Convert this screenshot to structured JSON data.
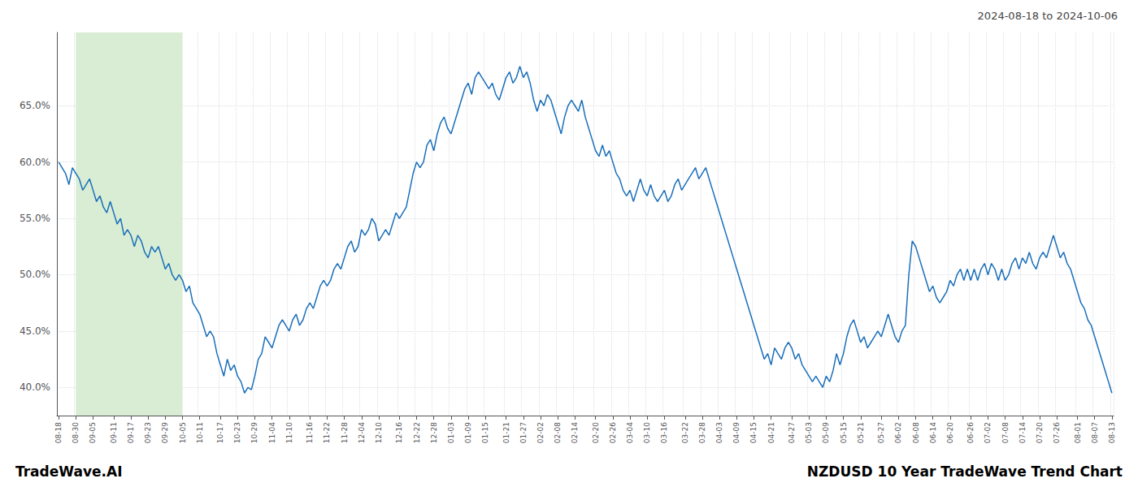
{
  "chart_data": {
    "type": "line",
    "title": "NZDUSD 10 Year TradeWave Trend Chart",
    "subtitle": "2024-08-18 to 2024-10-06",
    "annotations": [
      "TradeWave.AI"
    ],
    "color": "#1a6fba",
    "grid": true,
    "ylim": [
      37.5,
      71.5
    ],
    "yticks": [
      {
        "value": 40.0,
        "label": "40.0%"
      },
      {
        "value": 45.0,
        "label": "45.0%"
      },
      {
        "value": 50.0,
        "label": "50.0%"
      },
      {
        "value": 55.0,
        "label": "55.0%"
      },
      {
        "value": 60.0,
        "label": "60.0%"
      },
      {
        "value": 65.0,
        "label": "65.0%"
      }
    ],
    "shaded": {
      "start": "08-30",
      "end": "10-05",
      "color": "#d8edd4"
    },
    "categories": [
      "08-18",
      null,
      null,
      null,
      null,
      "08-30",
      null,
      null,
      null,
      null,
      "09-05",
      null,
      null,
      null,
      null,
      null,
      "09-11",
      null,
      null,
      null,
      null,
      "09-17",
      null,
      null,
      null,
      null,
      "09-23",
      null,
      null,
      null,
      null,
      "09-29",
      null,
      null,
      null,
      null,
      "10-05",
      null,
      null,
      null,
      null,
      "10-11",
      null,
      null,
      null,
      null,
      null,
      "10-17",
      null,
      null,
      null,
      null,
      "10-23",
      null,
      null,
      null,
      null,
      "10-29",
      null,
      null,
      null,
      null,
      "11-04",
      null,
      null,
      null,
      null,
      "11-10",
      null,
      null,
      null,
      null,
      null,
      "11-16",
      null,
      null,
      null,
      null,
      "11-22",
      null,
      null,
      null,
      null,
      "11-28",
      null,
      null,
      null,
      null,
      "12-04",
      null,
      null,
      null,
      null,
      "12-10",
      null,
      null,
      null,
      null,
      null,
      "12-16",
      null,
      null,
      null,
      null,
      "12-22",
      null,
      null,
      null,
      null,
      "12-28",
      null,
      null,
      null,
      null,
      "01-03",
      null,
      null,
      null,
      null,
      "01-09",
      null,
      null,
      null,
      null,
      "01-15",
      null,
      null,
      null,
      null,
      null,
      "01-21",
      null,
      null,
      null,
      null,
      "01-27",
      null,
      null,
      null,
      null,
      "02-02",
      null,
      null,
      null,
      null,
      "02-08",
      null,
      null,
      null,
      null,
      "02-14",
      null,
      null,
      null,
      null,
      null,
      "02-20",
      null,
      null,
      null,
      null,
      "02-26",
      null,
      null,
      null,
      null,
      "03-04",
      null,
      null,
      null,
      null,
      "03-10",
      null,
      null,
      null,
      null,
      "03-16",
      null,
      null,
      null,
      null,
      null,
      "03-22",
      null,
      null,
      null,
      null,
      "03-28",
      null,
      null,
      null,
      null,
      "04-03",
      null,
      null,
      null,
      null,
      "04-09",
      null,
      null,
      null,
      null,
      "04-15",
      null,
      null,
      null,
      null,
      "04-21",
      null,
      null,
      null,
      null,
      null,
      "04-27",
      null,
      null,
      null,
      null,
      "05-03",
      null,
      null,
      null,
      null,
      "05-09",
      null,
      null,
      null,
      null,
      "05-15",
      null,
      null,
      null,
      null,
      "05-21",
      null,
      null,
      null,
      null,
      null,
      "05-27",
      null,
      null,
      null,
      null,
      "06-02",
      null,
      null,
      null,
      null,
      "06-08",
      null,
      null,
      null,
      null,
      "06-14",
      null,
      null,
      null,
      null,
      "06-20",
      null,
      null,
      null,
      null,
      null,
      "06-26",
      null,
      null,
      null,
      null,
      "07-02",
      null,
      null,
      null,
      null,
      "07-08",
      null,
      null,
      null,
      null,
      "07-14",
      null,
      null,
      null,
      null,
      "07-20",
      null,
      null,
      null,
      null,
      "07-26",
      null,
      null,
      null,
      null,
      null,
      "08-01",
      null,
      null,
      null,
      null,
      "08-07",
      null,
      null,
      null,
      null,
      "08-13"
    ],
    "values": [
      60.0,
      59.5,
      59.0,
      58.0,
      59.5,
      59.0,
      58.5,
      57.5,
      58.0,
      58.5,
      57.5,
      56.5,
      57.0,
      56.0,
      55.5,
      56.5,
      55.5,
      54.5,
      55.0,
      53.5,
      54.0,
      53.5,
      52.5,
      53.5,
      53.0,
      52.0,
      51.5,
      52.5,
      52.0,
      52.5,
      51.5,
      50.5,
      51.0,
      50.0,
      49.5,
      50.0,
      49.5,
      48.5,
      49.0,
      47.5,
      47.0,
      46.5,
      45.5,
      44.5,
      45.0,
      44.5,
      43.0,
      42.0,
      41.0,
      42.5,
      41.5,
      42.0,
      41.0,
      40.5,
      39.5,
      40.0,
      39.8,
      41.0,
      42.5,
      43.0,
      44.5,
      44.0,
      43.5,
      44.5,
      45.5,
      46.0,
      45.5,
      45.0,
      46.0,
      46.5,
      45.5,
      46.0,
      47.0,
      47.5,
      47.0,
      48.0,
      49.0,
      49.5,
      49.0,
      49.5,
      50.5,
      51.0,
      50.5,
      51.5,
      52.5,
      53.0,
      52.0,
      52.5,
      54.0,
      53.5,
      54.0,
      55.0,
      54.5,
      53.0,
      53.5,
      54.0,
      53.5,
      54.5,
      55.5,
      55.0,
      55.5,
      56.0,
      57.5,
      59.0,
      60.0,
      59.5,
      60.0,
      61.5,
      62.0,
      61.0,
      62.5,
      63.5,
      64.0,
      63.0,
      62.5,
      63.5,
      64.5,
      65.5,
      66.5,
      67.0,
      66.0,
      67.5,
      68.0,
      67.5,
      67.0,
      66.5,
      67.0,
      66.0,
      65.5,
      66.5,
      67.5,
      68.0,
      67.0,
      67.5,
      68.5,
      67.5,
      68.0,
      67.0,
      65.5,
      64.5,
      65.5,
      65.0,
      66.0,
      65.5,
      64.5,
      63.5,
      62.5,
      64.0,
      65.0,
      65.5,
      65.0,
      64.5,
      65.5,
      64.0,
      63.0,
      62.0,
      61.0,
      60.5,
      61.5,
      60.5,
      61.0,
      60.0,
      59.0,
      58.5,
      57.5,
      57.0,
      57.5,
      56.5,
      57.5,
      58.5,
      57.5,
      57.0,
      58.0,
      57.0,
      56.5,
      57.0,
      57.5,
      56.5,
      57.0,
      58.0,
      58.5,
      57.5,
      58.0,
      58.5,
      59.0,
      59.5,
      58.5,
      59.0,
      59.5,
      58.5,
      57.5,
      56.5,
      55.5,
      54.5,
      53.5,
      52.5,
      51.5,
      50.5,
      49.5,
      48.5,
      47.5,
      46.5,
      45.5,
      44.5,
      43.5,
      42.5,
      43.0,
      42.0,
      43.5,
      43.0,
      42.5,
      43.5,
      44.0,
      43.5,
      42.5,
      43.0,
      42.0,
      41.5,
      41.0,
      40.5,
      41.0,
      40.5,
      40.0,
      41.0,
      40.5,
      41.5,
      43.0,
      42.0,
      43.0,
      44.5,
      45.5,
      46.0,
      45.0,
      44.0,
      44.5,
      43.5,
      44.0,
      44.5,
      45.0,
      44.5,
      45.5,
      46.5,
      45.5,
      44.5,
      44.0,
      45.0,
      45.5,
      50.0,
      53.0,
      52.5,
      51.5,
      50.5,
      49.5,
      48.5,
      49.0,
      48.0,
      47.5,
      48.0,
      48.5,
      49.5,
      49.0,
      50.0,
      50.5,
      49.5,
      50.5,
      49.5,
      50.5,
      49.5,
      50.5,
      51.0,
      50.0,
      51.0,
      50.5,
      49.5,
      50.5,
      49.5,
      50.0,
      51.0,
      51.5,
      50.5,
      51.5,
      51.0,
      52.0,
      51.0,
      50.5,
      51.5,
      52.0,
      51.5,
      52.5,
      53.5,
      52.5,
      51.5,
      52.0,
      51.0,
      50.5,
      49.5,
      48.5,
      47.5,
      47.0,
      46.0,
      45.5,
      44.5,
      43.5,
      42.5,
      41.5,
      40.5,
      39.5
    ]
  }
}
